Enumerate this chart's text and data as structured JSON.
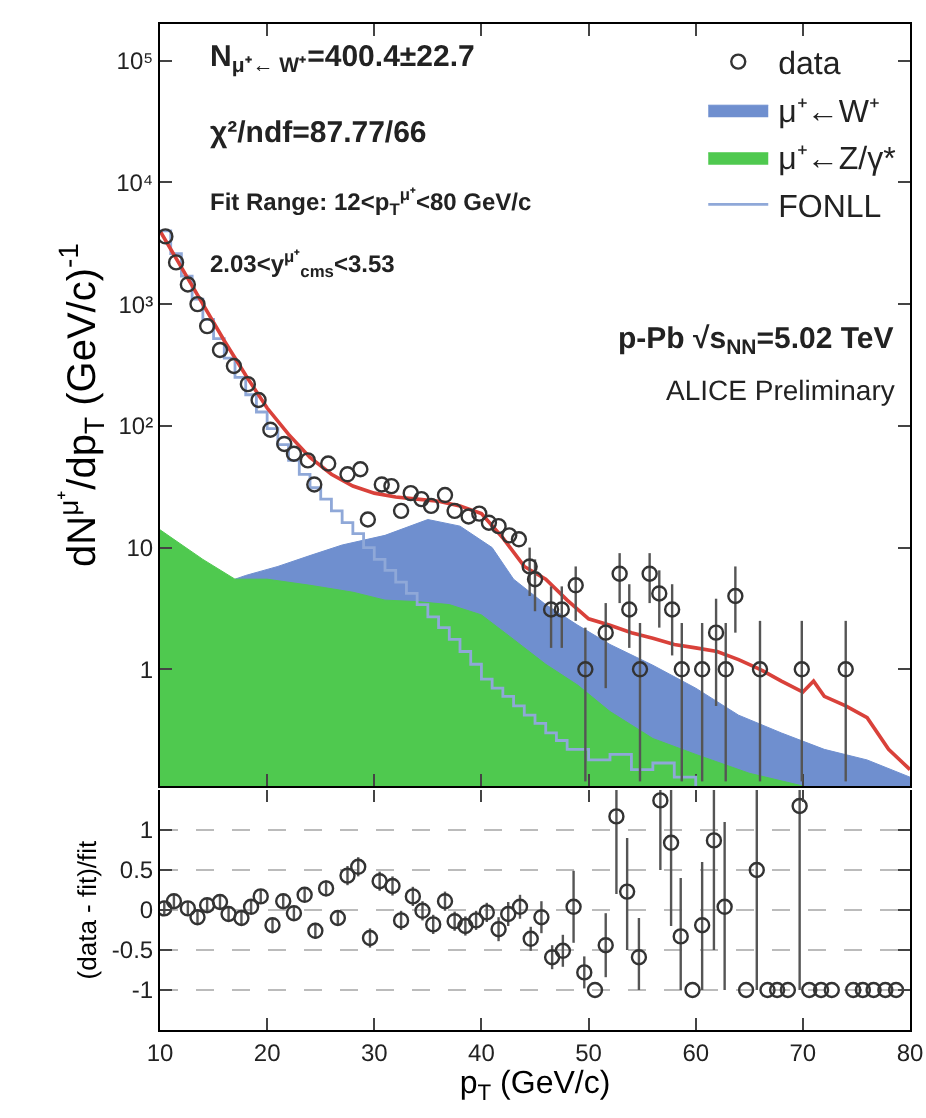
{
  "chart_data": [
    {
      "type": "line",
      "ylabel": "dN$^{μ⁺}$/dp$_{T}$ (GeV/c)$^{-1}$",
      "log": "y",
      "xlim": [
        10,
        80
      ],
      "ylim": [
        0.11,
        200000
      ],
      "xticks": [
        {
          "value": 10,
          "label": null
        },
        {
          "value": 20,
          "label": null
        },
        {
          "value": 30,
          "label": null
        },
        {
          "value": 40,
          "label": null
        },
        {
          "value": 50,
          "label": null
        },
        {
          "value": 60,
          "label": null
        },
        {
          "value": 70,
          "label": null
        },
        {
          "value": 80,
          "label": null
        }
      ],
      "yticks": [
        1,
        10,
        {
          "value": 100,
          "label": "10²"
        },
        {
          "value": 1000,
          "label": "10³"
        },
        {
          "value": 10000,
          "label": "10⁴"
        },
        {
          "value": 100000,
          "label": "10⁵"
        }
      ],
      "tick_labels": "y",
      "grid": false,
      "legend": "top right",
      "line_style": "solid",
      "annotations": [
        "N$_{μ⁺← W⁺}$=400.4±22.7",
        "χ²/ndf=87.77/66",
        "Fit Range: 12<p$_{T}$$^{μ⁺}$<80 GeV/c",
        "2.03<y$^{μ⁺}$$_{cms}$<3.53",
        "p-Pb √s$_{NN}$=5.02 TeV",
        "ALICE Preliminary"
      ],
      "series": [
        {
          "name": "data",
          "type": "scatter",
          "marker": "circle",
          "color": "#333333",
          "x": [
            10.5,
            11.5,
            12.6,
            13.5,
            14.4,
            15.6,
            16.9,
            18.2,
            19.2,
            20.3,
            21.6,
            22.5,
            23.8,
            24.4,
            25.7,
            27.5,
            28.7,
            29.4,
            30.7,
            31.6,
            32.5,
            33.4,
            34.4,
            35.3,
            36.6,
            37.5,
            38.8,
            39.8,
            40.7,
            41.6,
            42.6,
            43.5,
            44.5,
            45,
            46.5,
            47.5,
            48.8,
            49.7,
            51.6,
            52.9,
            53.8,
            54.8,
            55.7,
            56.6,
            57.8,
            58.7,
            60.6,
            61.9,
            62.8,
            63.7,
            66,
            69.9,
            74
          ],
          "values": [
            3600,
            2200,
            1450,
            1000,
            660,
            420,
            310,
            220,
            163,
            93,
            71,
            59,
            52,
            33,
            49,
            40,
            44,
            17,
            33,
            32,
            20,
            28,
            25,
            22,
            27,
            20,
            18,
            19,
            16,
            15,
            12.6,
            11.7,
            7,
            5.5,
            3.1,
            3.1,
            4.9,
            1.0,
            2,
            6.1,
            3.1,
            1.0,
            6.1,
            4.2,
            3.1,
            1.0,
            1.0,
            2.0,
            1.0,
            4,
            1.0,
            1.0,
            1.0
          ],
          "errors": [
            null,
            null,
            null,
            null,
            null,
            null,
            null,
            null,
            null,
            null,
            null,
            null,
            null,
            null,
            null,
            null,
            null,
            null,
            null,
            null,
            null,
            null,
            null,
            null,
            null,
            null,
            null,
            null,
            null,
            null,
            null,
            null,
            [
              4,
              10
            ],
            [
              3,
              8
            ],
            [
              1.5,
              4.8
            ],
            [
              1.5,
              4.8
            ],
            [
              2.5,
              7
            ],
            [
              0.12,
              2.2
            ],
            [
              0.7,
              3.5
            ],
            [
              3.5,
              9
            ],
            [
              1.5,
              5
            ],
            [
              0.12,
              2.4
            ],
            [
              3.5,
              9
            ],
            [
              2.2,
              6.5
            ],
            [
              1.3,
              5
            ],
            [
              0.12,
              2.4
            ],
            [
              0.12,
              2.4
            ],
            [
              0.5,
              3.8
            ],
            [
              0.12,
              2.4
            ],
            [
              2,
              7
            ],
            [
              0.12,
              2.5
            ],
            [
              0.12,
              2.5
            ],
            [
              0.12,
              2.5
            ]
          ]
        },
        {
          "name": "μ⁺←W⁺",
          "type": "area",
          "color": "#6f8fcf",
          "x": [
            17,
            18,
            21,
            24,
            27,
            31,
            35,
            38,
            41,
            43,
            46,
            49,
            52,
            56,
            60,
            64,
            68,
            72,
            76,
            80
          ],
          "values": [
            5.5,
            5.9,
            7,
            8.6,
            10.5,
            12.6,
            17,
            15,
            10,
            5.5,
            3.4,
            2.3,
            1.6,
            1.08,
            0.7,
            0.42,
            0.3,
            0.22,
            0.18,
            0.13
          ]
        },
        {
          "name": "μ⁺←Z/γ*",
          "type": "area",
          "color": "#4fc94f",
          "x": [
            10,
            14,
            17,
            20,
            24,
            28,
            31,
            34,
            37,
            40,
            43,
            46,
            49,
            52,
            56,
            60,
            65,
            70
          ],
          "values": [
            14,
            8,
            5.5,
            5.5,
            4.9,
            4.3,
            3.7,
            3.6,
            3.4,
            2.8,
            1.76,
            1.1,
            0.74,
            0.45,
            0.27,
            0.2,
            0.14,
            0.11
          ]
        },
        {
          "name": "FONLL",
          "type": "step",
          "color": "#8fa8d8",
          "x": [
            10,
            11,
            12,
            13,
            14,
            15,
            16,
            17,
            18,
            19,
            20,
            21,
            22,
            23,
            24,
            25,
            26,
            27,
            28,
            29,
            30,
            31,
            32,
            33,
            34,
            35,
            36,
            37,
            38,
            39,
            40,
            41,
            42,
            43,
            44,
            45,
            46,
            47,
            48,
            50,
            52,
            54,
            56,
            58,
            60
          ],
          "values": [
            4000,
            2600,
            1700,
            1100,
            750,
            520,
            360,
            250,
            180,
            130,
            95,
            70,
            52,
            40,
            31,
            25,
            20,
            16,
            13,
            10,
            8,
            6.5,
            5.2,
            4.2,
            3.4,
            2.7,
            2.2,
            1.76,
            1.4,
            1.1,
            0.83,
            0.7,
            0.6,
            0.5,
            0.42,
            0.36,
            0.3,
            0.26,
            0.22,
            0.18,
            0.2,
            0.15,
            0.17,
            0.13,
            0.11
          ]
        },
        {
          "color": "#d9413a",
          "x": [
            10,
            12,
            14,
            16,
            18,
            20,
            22,
            24,
            26,
            28,
            30,
            32,
            34,
            36,
            38,
            40,
            42,
            44,
            46,
            48,
            50,
            52,
            54,
            56,
            58,
            60,
            62,
            64,
            66,
            68,
            70,
            71,
            72,
            74,
            76,
            78,
            80
          ],
          "values": [
            4000,
            2000,
            1000,
            500,
            260,
            140,
            85,
            55,
            40,
            32,
            28,
            26,
            25,
            24,
            22,
            19,
            12,
            7,
            5.5,
            3.7,
            2.6,
            2.3,
            2.0,
            1.8,
            1.6,
            1.5,
            1.4,
            1.2,
            1.0,
            0.8,
            0.65,
            0.8,
            0.6,
            0.5,
            0.4,
            0.22,
            0.15
          ]
        }
      ]
    },
    {
      "type": "scatter",
      "xlabel": "p$_{T}$ (GeV/c)",
      "ylabel": "(data - fit)/fit",
      "xlim": [
        10,
        80
      ],
      "ylim": [
        -1.5,
        1.5
      ],
      "xticks": [
        10,
        20,
        30,
        40,
        50,
        60,
        70,
        80
      ],
      "yticks": [
        -1,
        -0.5,
        0,
        0.5,
        1
      ],
      "grid": "y",
      "marker": "circle",
      "series": [
        {
          "color": "#333333",
          "x": [
            10.4,
            11.3,
            12.6,
            13.5,
            14.4,
            15.6,
            16.4,
            17.6,
            18.5,
            19.4,
            20.5,
            21.5,
            22.5,
            23.5,
            24.5,
            25.5,
            26.6,
            27.5,
            28.5,
            29.6,
            30.5,
            31.7,
            32.5,
            33.6,
            34.5,
            35.5,
            36.6,
            37.5,
            38.5,
            39.5,
            40.5,
            41.6,
            42.5,
            43.6,
            44.6,
            45.6,
            46.6,
            47.6,
            48.6,
            49.6,
            50.6,
            51.6,
            52.6,
            53.6,
            54.7,
            56.7,
            57.7,
            58.6,
            59.7,
            60.6,
            61.7,
            62.7,
            64.7,
            65.7,
            66.7,
            67.6,
            68.6,
            69.7,
            70.6,
            71.7,
            72.7,
            74.7,
            75.6,
            76.6,
            77.7,
            78.7
          ],
          "values": [
            0.02,
            0.11,
            0.02,
            -0.09,
            0.06,
            0.1,
            -0.05,
            -0.1,
            0.04,
            0.17,
            -0.19,
            0.11,
            -0.04,
            0.19,
            -0.26,
            0.27,
            -0.1,
            0.43,
            0.54,
            -0.35,
            0.36,
            0.3,
            -0.13,
            0.17,
            -0.01,
            -0.18,
            0.11,
            -0.14,
            -0.2,
            -0.13,
            -0.03,
            -0.24,
            -0.05,
            0.04,
            -0.36,
            -0.09,
            -0.59,
            -0.51,
            0.04,
            -0.78,
            -1,
            -0.44,
            1.17,
            0.23,
            -0.59,
            1.37,
            0.84,
            -0.33,
            -1,
            -0.19,
            0.87,
            0.04,
            -1,
            0.5,
            -1,
            -1,
            -1,
            1.3,
            -1,
            -1,
            -1,
            -1,
            -1,
            -1,
            -1,
            -1
          ],
          "errors": [
            0.08,
            0.08,
            0.08,
            0.08,
            0.08,
            0.08,
            0.08,
            0.08,
            0.08,
            0.08,
            0.08,
            0.08,
            0.08,
            0.08,
            0.1,
            0.1,
            0.1,
            0.12,
            0.12,
            0.12,
            0.12,
            0.12,
            0.12,
            0.12,
            0.12,
            0.12,
            0.12,
            0.12,
            0.12,
            0.12,
            0.12,
            0.15,
            0.15,
            0.15,
            0.15,
            0.2,
            0.15,
            0.2,
            0.45,
            0.2,
            null,
            0.4,
            [
              0.2,
              1.5
            ],
            [
              -0.5,
              0.9
            ],
            [
              -1,
              -0.1
            ],
            [
              0.5,
              1.5
            ],
            [
              -0.2,
              1.5
            ],
            [
              -1,
              0.4
            ],
            null,
            [
              -1,
              0.6
            ],
            [
              -0.5,
              1.5
            ],
            [
              -1,
              1.1
            ],
            null,
            [
              -1,
              1.5
            ],
            null,
            null,
            null,
            [
              -1,
              1.5
            ],
            null,
            null,
            null,
            null,
            null,
            null,
            null,
            null
          ]
        }
      ]
    }
  ]
}
